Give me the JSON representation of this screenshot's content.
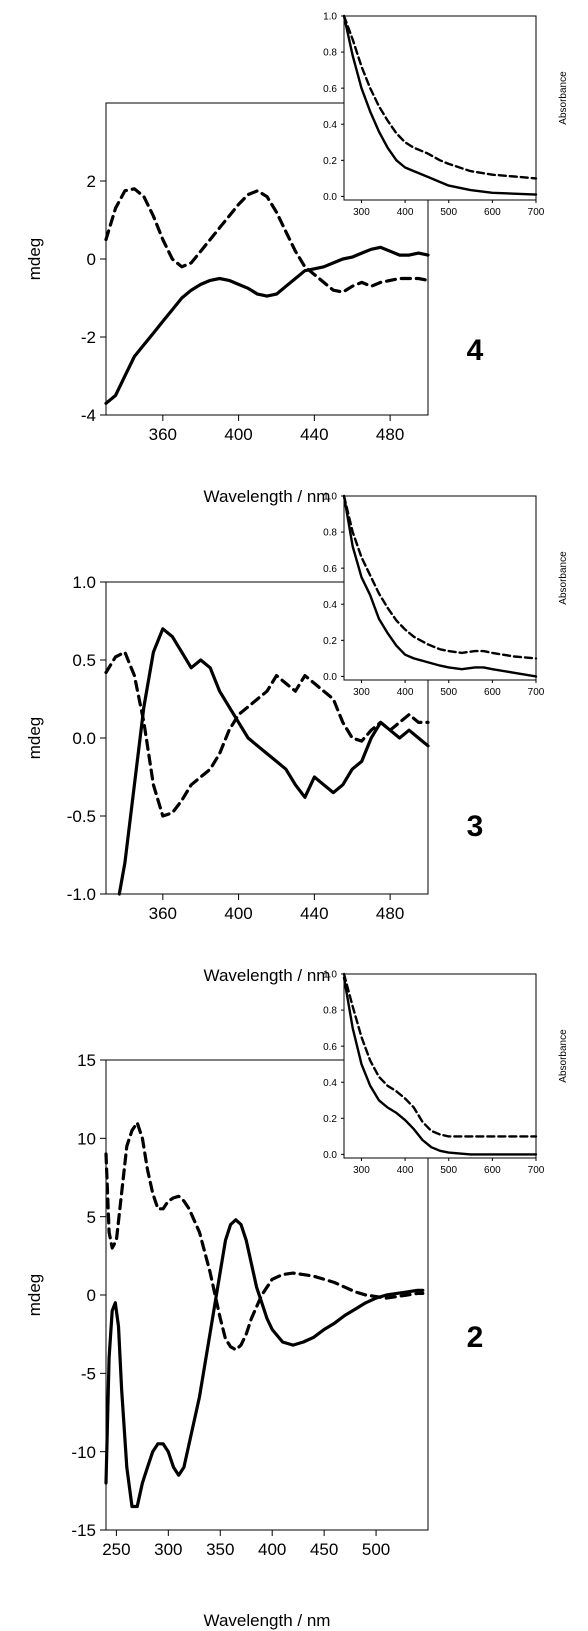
{
  "chart_data": [
    {
      "type": "line",
      "panel_label": "4",
      "xlabel": "Wavelength / nm",
      "ylabel": "mdeg",
      "xlim": [
        330,
        500
      ],
      "ylim": [
        -4,
        4
      ],
      "xticks": [
        "360",
        "400",
        "440",
        "480"
      ],
      "xtick_values": [
        360,
        400,
        440,
        480
      ],
      "yticks": [
        "-4",
        "-2",
        "0",
        "2"
      ],
      "ytick_values": [
        -4,
        -2,
        0,
        2
      ],
      "series": [
        {
          "style": "solid",
          "x": [
            330,
            335,
            340,
            345,
            350,
            355,
            360,
            365,
            370,
            375,
            380,
            385,
            390,
            395,
            400,
            405,
            410,
            415,
            420,
            425,
            430,
            435,
            440,
            445,
            450,
            455,
            460,
            465,
            470,
            475,
            480,
            485,
            490,
            495,
            500
          ],
          "y": [
            -3.7,
            -3.5,
            -3.0,
            -2.5,
            -2.2,
            -1.9,
            -1.6,
            -1.3,
            -1.0,
            -0.8,
            -0.65,
            -0.55,
            -0.5,
            -0.55,
            -0.65,
            -0.75,
            -0.9,
            -0.95,
            -0.9,
            -0.7,
            -0.5,
            -0.3,
            -0.25,
            -0.2,
            -0.1,
            0.0,
            0.05,
            0.15,
            0.25,
            0.3,
            0.2,
            0.1,
            0.1,
            0.15,
            0.1
          ]
        },
        {
          "style": "dashed",
          "x": [
            330,
            335,
            340,
            345,
            350,
            355,
            360,
            365,
            370,
            375,
            380,
            385,
            390,
            395,
            400,
            405,
            410,
            415,
            420,
            425,
            430,
            435,
            440,
            445,
            450,
            455,
            460,
            465,
            470,
            475,
            480,
            485,
            490,
            495,
            500
          ],
          "y": [
            0.5,
            1.3,
            1.75,
            1.8,
            1.6,
            1.1,
            0.5,
            0.0,
            -0.2,
            -0.1,
            0.2,
            0.5,
            0.8,
            1.1,
            1.4,
            1.65,
            1.75,
            1.6,
            1.2,
            0.7,
            0.2,
            -0.2,
            -0.4,
            -0.6,
            -0.8,
            -0.85,
            -0.7,
            -0.6,
            -0.7,
            -0.6,
            -0.55,
            -0.5,
            -0.5,
            -0.5,
            -0.55
          ]
        }
      ],
      "inset": {
        "ylabel": "Absorbance",
        "xlim": [
          260,
          700
        ],
        "ylim": [
          -0.02,
          1.0
        ],
        "xticks": [
          "300",
          "400",
          "500",
          "600",
          "700"
        ],
        "xtick_values": [
          300,
          400,
          500,
          600,
          700
        ],
        "yticks": [
          "0.0",
          "0.2",
          "0.4",
          "0.6",
          "0.8",
          "1.0"
        ],
        "ytick_values": [
          0.0,
          0.2,
          0.4,
          0.6,
          0.8,
          1.0
        ],
        "series": [
          {
            "style": "solid",
            "x": [
              260,
              280,
              300,
              320,
              340,
              360,
              380,
              400,
              420,
              450,
              480,
              500,
              550,
              600,
              650,
              700
            ],
            "y": [
              1.0,
              0.78,
              0.6,
              0.47,
              0.36,
              0.27,
              0.2,
              0.16,
              0.14,
              0.11,
              0.08,
              0.06,
              0.035,
              0.02,
              0.015,
              0.01
            ]
          },
          {
            "style": "dashed",
            "x": [
              260,
              280,
              300,
              320,
              340,
              360,
              380,
              400,
              420,
              450,
              480,
              500,
              550,
              600,
              650,
              700
            ],
            "y": [
              1.05,
              0.87,
              0.72,
              0.6,
              0.5,
              0.42,
              0.35,
              0.3,
              0.27,
              0.24,
              0.2,
              0.18,
              0.14,
              0.12,
              0.11,
              0.1
            ]
          }
        ]
      }
    },
    {
      "type": "line",
      "panel_label": "3",
      "xlabel": "Wavelength / nm",
      "ylabel": "mdeg",
      "xlim": [
        330,
        500
      ],
      "ylim": [
        -1.0,
        1.0
      ],
      "xticks": [
        "360",
        "400",
        "440",
        "480"
      ],
      "xtick_values": [
        360,
        400,
        440,
        480
      ],
      "yticks": [
        "-1.0",
        "-0.5",
        "0.0",
        "0.5",
        "1.0"
      ],
      "ytick_values": [
        -1.0,
        -0.5,
        0.0,
        0.5,
        1.0
      ],
      "series": [
        {
          "style": "solid",
          "x": [
            337,
            340,
            345,
            350,
            355,
            360,
            365,
            370,
            375,
            380,
            385,
            390,
            395,
            400,
            405,
            410,
            415,
            420,
            425,
            430,
            435,
            440,
            445,
            450,
            455,
            460,
            465,
            470,
            475,
            480,
            485,
            490,
            495,
            500
          ],
          "y": [
            -1.0,
            -0.8,
            -0.3,
            0.2,
            0.55,
            0.7,
            0.65,
            0.55,
            0.45,
            0.5,
            0.45,
            0.3,
            0.2,
            0.1,
            0.0,
            -0.05,
            -0.1,
            -0.15,
            -0.2,
            -0.3,
            -0.38,
            -0.25,
            -0.3,
            -0.35,
            -0.3,
            -0.2,
            -0.15,
            0.0,
            0.1,
            0.05,
            0.0,
            0.05,
            0.0,
            -0.05
          ]
        },
        {
          "style": "dashed",
          "x": [
            330,
            335,
            340,
            345,
            350,
            355,
            360,
            365,
            370,
            375,
            380,
            385,
            390,
            395,
            400,
            405,
            410,
            415,
            420,
            425,
            430,
            435,
            440,
            445,
            450,
            455,
            460,
            465,
            470,
            475,
            480,
            485,
            490,
            495,
            500
          ],
          "y": [
            0.42,
            0.52,
            0.55,
            0.4,
            0.1,
            -0.3,
            -0.5,
            -0.48,
            -0.4,
            -0.3,
            -0.25,
            -0.2,
            -0.1,
            0.05,
            0.15,
            0.2,
            0.25,
            0.3,
            0.4,
            0.35,
            0.3,
            0.4,
            0.35,
            0.3,
            0.25,
            0.1,
            0.0,
            -0.02,
            0.05,
            0.1,
            0.05,
            0.1,
            0.15,
            0.1,
            0.1
          ]
        }
      ],
      "inset": {
        "ylabel": "Absorbance",
        "xlim": [
          260,
          700
        ],
        "ylim": [
          -0.02,
          1.0
        ],
        "xticks": [
          "300",
          "400",
          "500",
          "600",
          "700"
        ],
        "xtick_values": [
          300,
          400,
          500,
          600,
          700
        ],
        "yticks": [
          "0.0",
          "0.2",
          "0.4",
          "0.6",
          "0.8",
          "1.0"
        ],
        "ytick_values": [
          0.0,
          0.2,
          0.4,
          0.6,
          0.8,
          1.0
        ],
        "series": [
          {
            "style": "solid",
            "x": [
              260,
              280,
              300,
              320,
              340,
              360,
              380,
              400,
              420,
              450,
              480,
              500,
              530,
              560,
              580,
              600,
              650,
              700
            ],
            "y": [
              1.0,
              0.72,
              0.55,
              0.45,
              0.32,
              0.24,
              0.17,
              0.12,
              0.1,
              0.08,
              0.06,
              0.05,
              0.04,
              0.05,
              0.05,
              0.04,
              0.02,
              0.0
            ]
          },
          {
            "style": "dashed",
            "x": [
              260,
              280,
              300,
              320,
              340,
              360,
              380,
              400,
              420,
              450,
              480,
              500,
              530,
              560,
              580,
              600,
              650,
              700
            ],
            "y": [
              1.0,
              0.8,
              0.66,
              0.56,
              0.46,
              0.38,
              0.31,
              0.26,
              0.22,
              0.18,
              0.15,
              0.14,
              0.13,
              0.14,
              0.14,
              0.13,
              0.11,
              0.1
            ]
          }
        ]
      }
    },
    {
      "type": "line",
      "panel_label": "2",
      "xlabel": "Wavelength / nm",
      "ylabel": "mdeg",
      "xlim": [
        240,
        550
      ],
      "ylim": [
        -15,
        15
      ],
      "xticks": [
        "250",
        "300",
        "350",
        "400",
        "450",
        "500"
      ],
      "xtick_values": [
        250,
        300,
        350,
        400,
        450,
        500
      ],
      "yticks": [
        "-15",
        "-10",
        "-5",
        "0",
        "5",
        "10",
        "15"
      ],
      "ytick_values": [
        -15,
        -10,
        -5,
        0,
        5,
        10,
        15
      ],
      "series": [
        {
          "style": "solid",
          "x": [
            240,
            243,
            246,
            249,
            252,
            255,
            260,
            265,
            270,
            275,
            280,
            285,
            290,
            295,
            300,
            305,
            310,
            315,
            320,
            330,
            340,
            350,
            355,
            360,
            365,
            370,
            375,
            380,
            385,
            390,
            395,
            400,
            410,
            420,
            430,
            440,
            450,
            460,
            470,
            480,
            490,
            500,
            510,
            520,
            530,
            540,
            545
          ],
          "y": [
            -12.0,
            -4.0,
            -1.0,
            -0.5,
            -2.0,
            -6.0,
            -11.0,
            -13.5,
            -13.5,
            -12.0,
            -11.0,
            -10.0,
            -9.5,
            -9.5,
            -10.0,
            -11.0,
            -11.5,
            -11.0,
            -9.5,
            -6.5,
            -2.5,
            1.5,
            3.5,
            4.5,
            4.8,
            4.5,
            3.5,
            2.0,
            0.5,
            -0.5,
            -1.5,
            -2.2,
            -3.0,
            -3.2,
            -3.0,
            -2.7,
            -2.2,
            -1.8,
            -1.3,
            -0.9,
            -0.5,
            -0.2,
            0.0,
            0.1,
            0.2,
            0.3,
            0.3
          ]
        },
        {
          "style": "dashed",
          "x": [
            240,
            243,
            246,
            250,
            255,
            260,
            265,
            270,
            275,
            280,
            285,
            290,
            295,
            300,
            305,
            310,
            315,
            320,
            330,
            340,
            350,
            355,
            360,
            365,
            370,
            375,
            380,
            390,
            400,
            410,
            420,
            430,
            440,
            450,
            460,
            470,
            480,
            490,
            500,
            510,
            520,
            530,
            540,
            545
          ],
          "y": [
            9.0,
            4.0,
            3.0,
            3.5,
            6.5,
            9.5,
            10.5,
            11.0,
            10.0,
            8.0,
            6.5,
            5.5,
            5.5,
            6.0,
            6.2,
            6.3,
            6.0,
            5.5,
            4.0,
            1.5,
            -1.5,
            -2.8,
            -3.3,
            -3.5,
            -3.2,
            -2.5,
            -1.5,
            0.0,
            1.0,
            1.3,
            1.4,
            1.3,
            1.2,
            1.0,
            0.8,
            0.5,
            0.2,
            0.0,
            -0.1,
            -0.2,
            -0.1,
            0.0,
            0.1,
            0.1
          ]
        }
      ],
      "inset": {
        "ylabel": "Absorbance",
        "xlim": [
          260,
          700
        ],
        "ylim": [
          -0.02,
          1.0
        ],
        "xticks": [
          "300",
          "400",
          "500",
          "600",
          "700"
        ],
        "xtick_values": [
          300,
          400,
          500,
          600,
          700
        ],
        "yticks": [
          "0.0",
          "0.2",
          "0.4",
          "0.6",
          "0.8",
          "1.0"
        ],
        "ytick_values": [
          0.0,
          0.2,
          0.4,
          0.6,
          0.8,
          1.0
        ],
        "series": [
          {
            "style": "solid",
            "x": [
              260,
              280,
              300,
              320,
              340,
              360,
              380,
              400,
              420,
              440,
              460,
              480,
              500,
              550,
              600,
              650,
              700
            ],
            "y": [
              0.98,
              0.7,
              0.5,
              0.38,
              0.3,
              0.26,
              0.23,
              0.19,
              0.14,
              0.08,
              0.04,
              0.02,
              0.01,
              0.0,
              0.0,
              0.0,
              0.0
            ]
          },
          {
            "style": "dashed",
            "x": [
              260,
              280,
              300,
              320,
              340,
              360,
              380,
              400,
              420,
              440,
              460,
              480,
              500,
              550,
              600,
              650,
              700
            ],
            "y": [
              1.0,
              0.82,
              0.65,
              0.52,
              0.43,
              0.38,
              0.35,
              0.31,
              0.26,
              0.18,
              0.13,
              0.11,
              0.1,
              0.1,
              0.1,
              0.1,
              0.1
            ]
          }
        ]
      }
    }
  ]
}
